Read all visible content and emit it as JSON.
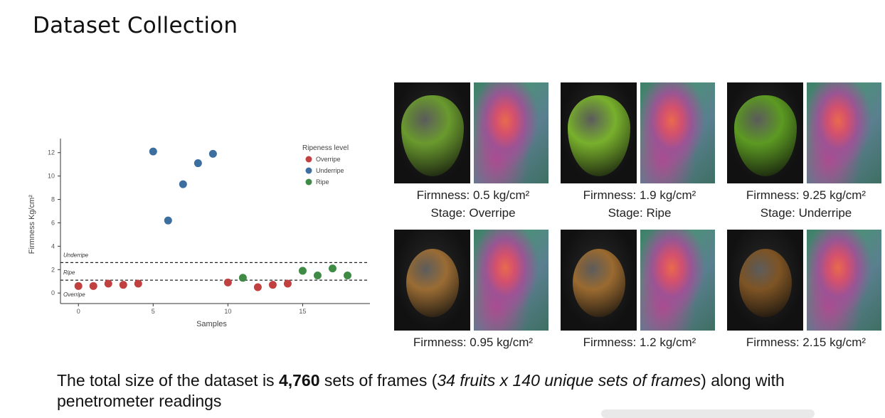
{
  "page": {
    "title": "Dataset Collection"
  },
  "chart_data": {
    "type": "scatter",
    "xlabel": "Samples",
    "ylabel": "Firmness Kg/cm²",
    "xlim": [
      -1.2,
      19.5
    ],
    "ylim": [
      -0.9,
      13.2
    ],
    "xticks": [
      0,
      5,
      10,
      15
    ],
    "yticks": [
      0,
      2,
      4,
      6,
      8,
      10,
      12
    ],
    "grid": false,
    "legend": {
      "title": "Ripeness level",
      "position": "top-right"
    },
    "thresholds": [
      {
        "y": 2.6,
        "label": "Underripe"
      },
      {
        "y": 1.1,
        "label": "Ripe"
      }
    ],
    "bottom_label": "Overripe",
    "series": [
      {
        "name": "Overripe",
        "color": "#c0413f",
        "points": [
          [
            0,
            0.6
          ],
          [
            1,
            0.6
          ],
          [
            2,
            0.8
          ],
          [
            3,
            0.7
          ],
          [
            4,
            0.8
          ],
          [
            10,
            0.9
          ],
          [
            12,
            0.5
          ],
          [
            13,
            0.7
          ],
          [
            14,
            0.8
          ]
        ]
      },
      {
        "name": "Underripe",
        "color": "#3c6e9f",
        "points": [
          [
            5,
            12.1
          ],
          [
            6,
            6.2
          ],
          [
            7,
            9.3
          ],
          [
            8,
            11.1
          ],
          [
            9,
            11.9
          ]
        ]
      },
      {
        "name": "Ripe",
        "color": "#3f8a45",
        "points": [
          [
            11,
            1.3
          ],
          [
            15,
            1.9
          ],
          [
            16,
            1.5
          ],
          [
            17,
            2.1
          ],
          [
            18,
            1.5
          ]
        ]
      }
    ]
  },
  "fruit_panels": [
    {
      "fruit": "avocado",
      "firmness": "Firmness: 0.5 kg/cm²",
      "stage": "Stage: Overripe",
      "fruit_color": "#6a9a2e"
    },
    {
      "fruit": "avocado",
      "firmness": "Firmness: 1.9 kg/cm²",
      "stage": "Stage: Ripe",
      "fruit_color": "#78b02c"
    },
    {
      "fruit": "avocado",
      "firmness": "Firmness: 9.25 kg/cm²",
      "stage": "Stage: Underripe",
      "fruit_color": "#5c9a22"
    },
    {
      "fruit": "kiwi",
      "firmness": "Firmness: 0.95 kg/cm²",
      "fruit_color": "#9a6c34"
    },
    {
      "fruit": "kiwi",
      "firmness": "Firmness: 1.2 kg/cm²",
      "fruit_color": "#9a6a30"
    },
    {
      "fruit": "kiwi",
      "firmness": "Firmness: 2.15 kg/cm²",
      "fruit_color": "#7e5424"
    }
  ],
  "summary": {
    "intro": "The total size of the dataset is ",
    "total": "4,760",
    "middle": " sets of frames (",
    "detail": "34 fruits x 140 unique sets of frames",
    "end": ") along with penetrometer readings"
  }
}
